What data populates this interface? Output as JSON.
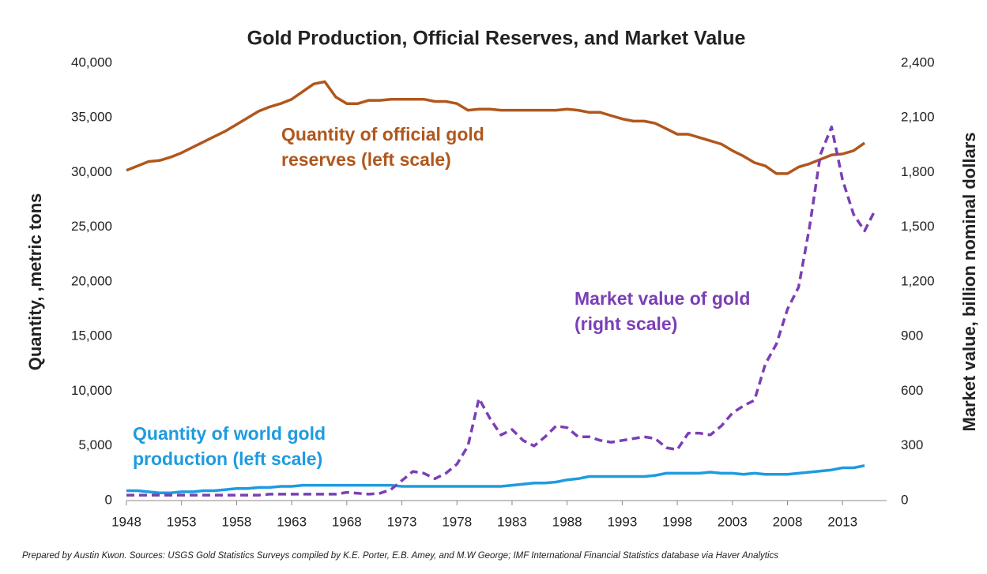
{
  "chart_data": {
    "type": "line",
    "title": "Gold Production, Official Reserves, and Market Value",
    "y_label": "Quantity, ,metric tons",
    "y2_label": "Market value, billion nominal dollars",
    "footnote": "Prepared by Austin Kwon. Sources: USGS Gold Statistics Surveys compiled by K.E. Porter, E.B. Amey, and M.W George; IMF International Financial Statistics database via Haver Analytics",
    "x": [
      1948,
      1949,
      1950,
      1951,
      1952,
      1953,
      1954,
      1955,
      1956,
      1957,
      1958,
      1959,
      1960,
      1961,
      1962,
      1963,
      1964,
      1965,
      1966,
      1967,
      1968,
      1969,
      1970,
      1971,
      1972,
      1973,
      1974,
      1975,
      1976,
      1977,
      1978,
      1979,
      1980,
      1981,
      1982,
      1983,
      1984,
      1985,
      1986,
      1987,
      1988,
      1989,
      1990,
      1991,
      1992,
      1993,
      1994,
      1995,
      1996,
      1997,
      1998,
      1999,
      2000,
      2001,
      2002,
      2003,
      2004,
      2005,
      2006,
      2007,
      2008,
      2009,
      2010,
      2011,
      2012,
      2013,
      2014,
      2015,
      2016
    ],
    "xlim": [
      1948,
      2017
    ],
    "xticks": [
      1948,
      1953,
      1958,
      1963,
      1968,
      1973,
      1978,
      1983,
      1988,
      1993,
      1998,
      2003,
      2008,
      2013
    ],
    "ylim": [
      0,
      40000
    ],
    "yticks": [
      0,
      {
        "value": 5000,
        "label": "5,000"
      },
      {
        "value": 10000,
        "label": "10,000"
      },
      {
        "value": 15000,
        "label": "15,000"
      },
      {
        "value": 20000,
        "label": "20,000"
      },
      {
        "value": 25000,
        "label": "25,000"
      },
      {
        "value": 30000,
        "label": "30,000"
      },
      {
        "value": 35000,
        "label": "35,000"
      },
      {
        "value": 40000,
        "label": "40,000"
      }
    ],
    "y2lim": [
      0,
      2400
    ],
    "y2ticks": [
      0,
      300,
      600,
      900,
      {
        "value": 1200,
        "label": "1,200"
      },
      {
        "value": 1500,
        "label": "1,500"
      },
      {
        "value": 1800,
        "label": "1,800"
      },
      {
        "value": 2100,
        "label": "2,100"
      },
      {
        "value": 2400,
        "label": "2,400"
      }
    ],
    "series": [
      {
        "color": "#b0571c",
        "dashed": false,
        "values": [
          30200,
          30600,
          31000,
          31100,
          31400,
          31800,
          32300,
          32800,
          33300,
          33800,
          34400,
          35000,
          35600,
          36000,
          36300,
          36700,
          37400,
          38100,
          38300,
          36900,
          36300,
          36300,
          36600,
          36600,
          36700,
          36700,
          36700,
          36700,
          36500,
          36500,
          36300,
          35700,
          35800,
          35800,
          35700,
          35700,
          35700,
          35700,
          35700,
          35700,
          35800,
          35700,
          35500,
          35500,
          35200,
          34900,
          34700,
          34700,
          34500,
          34000,
          33500,
          33500,
          33200,
          32900,
          32600,
          32000,
          31500,
          30900,
          30600,
          29900,
          29900,
          30500,
          30800,
          31200,
          31600,
          31700,
          32000,
          32700,
          null
        ]
      },
      {
        "color": "#1e9be0",
        "dashed": false,
        "values": [
          900,
          900,
          800,
          700,
          700,
          800,
          800,
          900,
          900,
          1000,
          1100,
          1100,
          1200,
          1200,
          1300,
          1300,
          1400,
          1400,
          1400,
          1400,
          1400,
          1400,
          1400,
          1400,
          1400,
          1300,
          1300,
          1300,
          1300,
          1300,
          1300,
          1300,
          1300,
          1300,
          1300,
          1400,
          1500,
          1600,
          1600,
          1700,
          1900,
          2000,
          2200,
          2200,
          2200,
          2200,
          2200,
          2200,
          2300,
          2500,
          2500,
          2500,
          2500,
          2600,
          2500,
          2500,
          2400,
          2500,
          2400,
          2400,
          2400,
          2500,
          2600,
          2700,
          2800,
          3000,
          3000,
          3200,
          null
        ]
      },
      {
        "color": "#7b3fb6",
        "dashed": true,
        "axis": "y2",
        "values": [
          30,
          30,
          30,
          30,
          30,
          30,
          30,
          30,
          30,
          30,
          30,
          30,
          30,
          35,
          35,
          35,
          35,
          35,
          35,
          35,
          45,
          40,
          35,
          40,
          60,
          110,
          160,
          150,
          120,
          150,
          200,
          300,
          560,
          450,
          360,
          390,
          330,
          300,
          350,
          410,
          400,
          350,
          350,
          330,
          320,
          330,
          340,
          350,
          340,
          290,
          280,
          370,
          370,
          360,
          410,
          480,
          520,
          550,
          750,
          860,
          1050,
          1170,
          1500,
          1900,
          2050,
          1760,
          1570,
          1480,
          1600
        ]
      }
    ],
    "annotations": [
      {
        "lines": [
          "Quantity of official gold",
          "reserves (left scale)"
        ],
        "color": "#b0571c"
      },
      {
        "lines": [
          "Market value of gold",
          "(right scale)"
        ],
        "color": "#7b3fb6"
      },
      {
        "lines": [
          "Quantity of world gold",
          "production (left scale)"
        ],
        "color": "#1e9be0"
      }
    ]
  }
}
